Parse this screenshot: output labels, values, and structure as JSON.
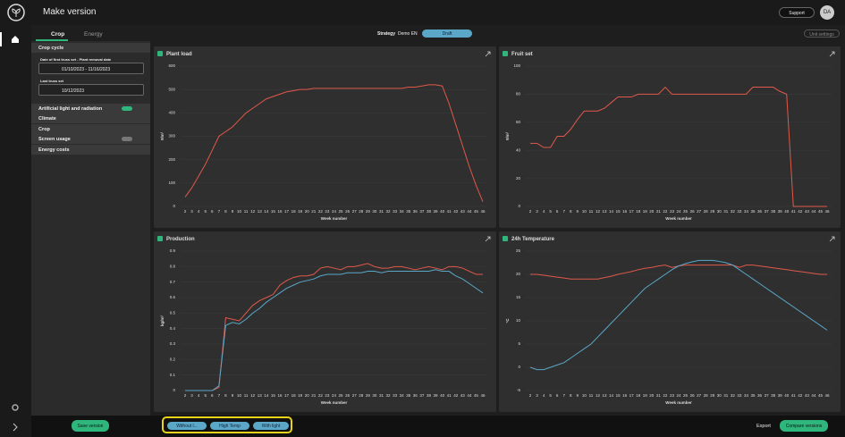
{
  "header": {
    "title": "Make version",
    "support": "Support",
    "avatar": "DA"
  },
  "sidebar": {
    "tabs": [
      "Crop",
      "Energy"
    ],
    "crop_cycle": "Crop cycle",
    "date_label": "Date of first truss set - Plant removal date",
    "date_value": "01/10/2023 - 11/16/2023",
    "last_label": "Last truss set",
    "last_value": "10/12/2023",
    "sections": [
      "Artificial light and radiation",
      "Climate",
      "Crop",
      "Screen usage",
      "Energy costs"
    ]
  },
  "toolbar": {
    "strategy_label": "Strategy",
    "strategy_value": "Demo EN",
    "status": "Draft",
    "unit_settings": "Unit settings"
  },
  "footer": {
    "save": "Save version",
    "scenarios": [
      "Without l...",
      "High Temp",
      "With light"
    ],
    "export": "Export",
    "compare": "Compare versions"
  },
  "chart_data": [
    {
      "type": "line",
      "title": "Plant load",
      "ylabel": "#/m²",
      "xlabel": "Week number",
      "categories": [
        2,
        3,
        4,
        5,
        6,
        7,
        8,
        9,
        10,
        11,
        12,
        13,
        14,
        15,
        16,
        17,
        18,
        19,
        20,
        21,
        22,
        23,
        24,
        25,
        26,
        27,
        28,
        29,
        30,
        31,
        32,
        33,
        34,
        35,
        36,
        37,
        38,
        39,
        40,
        41,
        42,
        43,
        44,
        45,
        46
      ],
      "ylim": [
        0,
        600
      ],
      "yticks": [
        0,
        100,
        200,
        300,
        400,
        500,
        600
      ],
      "series": [
        {
          "color": "#e0594a",
          "values": [
            40,
            80,
            130,
            180,
            240,
            300,
            320,
            340,
            370,
            400,
            420,
            440,
            460,
            470,
            480,
            490,
            495,
            500,
            500,
            505,
            505,
            505,
            505,
            505,
            505,
            505,
            505,
            505,
            505,
            505,
            505,
            505,
            505,
            510,
            510,
            515,
            520,
            520,
            515,
            440,
            350,
            260,
            170,
            90,
            20
          ]
        }
      ]
    },
    {
      "type": "line",
      "title": "Fruit set",
      "ylabel": "#/m²",
      "xlabel": "Week number",
      "categories": [
        2,
        3,
        4,
        5,
        6,
        7,
        8,
        9,
        10,
        11,
        12,
        13,
        14,
        15,
        16,
        17,
        18,
        19,
        20,
        21,
        22,
        23,
        24,
        25,
        26,
        27,
        28,
        29,
        30,
        31,
        32,
        33,
        34,
        35,
        36,
        37,
        38,
        39,
        40,
        41,
        42,
        43,
        44,
        45,
        46
      ],
      "ylim": [
        0,
        100
      ],
      "yticks": [
        0,
        20,
        40,
        60,
        80,
        100
      ],
      "series": [
        {
          "color": "#e0594a",
          "values": [
            45,
            45,
            42,
            42,
            50,
            50,
            55,
            62,
            68,
            68,
            68,
            70,
            74,
            78,
            78,
            78,
            80,
            80,
            80,
            80,
            85,
            80,
            80,
            80,
            80,
            80,
            80,
            80,
            80,
            80,
            80,
            80,
            80,
            85,
            85,
            85,
            85,
            82,
            80,
            0,
            0,
            0,
            0,
            0,
            0
          ]
        }
      ]
    },
    {
      "type": "line",
      "title": "Production",
      "ylabel": "kg/m²",
      "xlabel": "Week number",
      "categories": [
        2,
        3,
        4,
        5,
        6,
        7,
        8,
        9,
        10,
        11,
        12,
        13,
        14,
        15,
        16,
        17,
        18,
        19,
        20,
        21,
        22,
        23,
        24,
        25,
        26,
        27,
        28,
        29,
        30,
        31,
        32,
        33,
        34,
        35,
        36,
        37,
        38,
        39,
        40,
        41,
        42,
        43,
        44,
        45,
        46
      ],
      "ylim": [
        0,
        0.9
      ],
      "yticks": [
        0,
        0.1,
        0.2,
        0.3,
        0.4,
        0.5,
        0.6,
        0.7,
        0.8,
        0.9
      ],
      "series": [
        {
          "color": "#e0594a",
          "values": [
            0,
            0,
            0,
            0,
            0,
            0.02,
            0.47,
            0.46,
            0.45,
            0.5,
            0.55,
            0.58,
            0.6,
            0.62,
            0.68,
            0.71,
            0.73,
            0.74,
            0.74,
            0.75,
            0.79,
            0.8,
            0.79,
            0.78,
            0.8,
            0.8,
            0.81,
            0.82,
            0.8,
            0.79,
            0.79,
            0.8,
            0.8,
            0.79,
            0.78,
            0.79,
            0.8,
            0.79,
            0.78,
            0.8,
            0.8,
            0.79,
            0.77,
            0.75,
            0.75
          ]
        },
        {
          "color": "#5aa7c8",
          "values": [
            0,
            0,
            0,
            0,
            0,
            0.03,
            0.42,
            0.44,
            0.43,
            0.46,
            0.5,
            0.53,
            0.57,
            0.6,
            0.63,
            0.66,
            0.68,
            0.7,
            0.71,
            0.72,
            0.74,
            0.75,
            0.75,
            0.75,
            0.76,
            0.76,
            0.76,
            0.77,
            0.77,
            0.76,
            0.77,
            0.77,
            0.77,
            0.77,
            0.77,
            0.77,
            0.77,
            0.78,
            0.77,
            0.77,
            0.74,
            0.72,
            0.69,
            0.66,
            0.63
          ]
        }
      ]
    },
    {
      "type": "line",
      "title": "24h Temperature",
      "ylabel": "°C",
      "xlabel": "Week number",
      "categories": [
        2,
        3,
        4,
        5,
        6,
        7,
        8,
        9,
        10,
        11,
        12,
        13,
        14,
        15,
        16,
        17,
        18,
        19,
        20,
        21,
        22,
        23,
        24,
        25,
        26,
        27,
        28,
        29,
        30,
        31,
        32,
        33,
        34,
        35,
        36,
        37,
        38,
        39,
        40,
        41,
        42,
        43,
        44,
        45,
        46
      ],
      "ylim": [
        -5,
        25
      ],
      "yticks": [
        -5,
        0,
        5,
        10,
        15,
        20,
        25
      ],
      "series": [
        {
          "color": "#e0594a",
          "values": [
            20,
            20,
            19.8,
            19.6,
            19.4,
            19.2,
            19,
            19,
            19,
            19,
            19,
            19.3,
            19.6,
            20,
            20.3,
            20.6,
            21,
            21.3,
            21.5,
            21.8,
            22,
            21.5,
            21.8,
            22,
            22,
            22,
            22,
            22,
            22,
            22,
            22,
            21.5,
            22,
            22,
            21.8,
            21.6,
            21.4,
            21.2,
            21,
            20.8,
            20.6,
            20.4,
            20.2,
            20,
            20
          ]
        },
        {
          "color": "#5aa7c8",
          "values": [
            0,
            -0.5,
            -0.5,
            0,
            0.5,
            1,
            2,
            3,
            4,
            5,
            6.5,
            8,
            9.5,
            11,
            12.5,
            14,
            15.5,
            17,
            18,
            19,
            20,
            21,
            21.8,
            22.3,
            22.7,
            23,
            23,
            23,
            22.8,
            22.5,
            22,
            21,
            20,
            19,
            18,
            17,
            16,
            15,
            14,
            13,
            12,
            11,
            10,
            9,
            8
          ]
        }
      ]
    }
  ]
}
